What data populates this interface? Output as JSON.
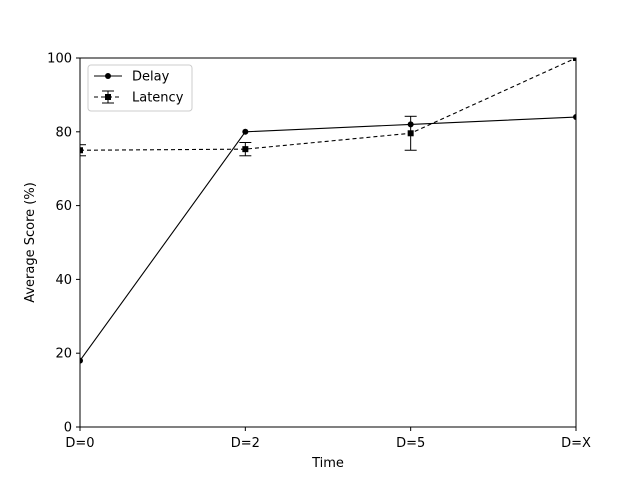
{
  "chart_data": {
    "type": "line",
    "categories": [
      "D=0",
      "D=2",
      "D=5",
      "D=X"
    ],
    "xlabel": "Time",
    "ylabel": "Average Score (%)",
    "ylim": [
      0,
      100
    ],
    "yticks": [
      0,
      20,
      40,
      60,
      80,
      100
    ],
    "grid": false,
    "legend_position": "top-left",
    "series": [
      {
        "name": "Delay",
        "values": [
          18,
          80,
          82,
          84
        ],
        "line_style": "solid",
        "marker": "circle",
        "color": "#000000"
      },
      {
        "name": "Latency",
        "values": [
          75,
          75.3,
          79.6,
          100
        ],
        "errors": [
          1.5,
          1.8,
          4.6,
          0
        ],
        "line_style": "dashed",
        "marker": "square",
        "color": "#000000"
      }
    ]
  }
}
